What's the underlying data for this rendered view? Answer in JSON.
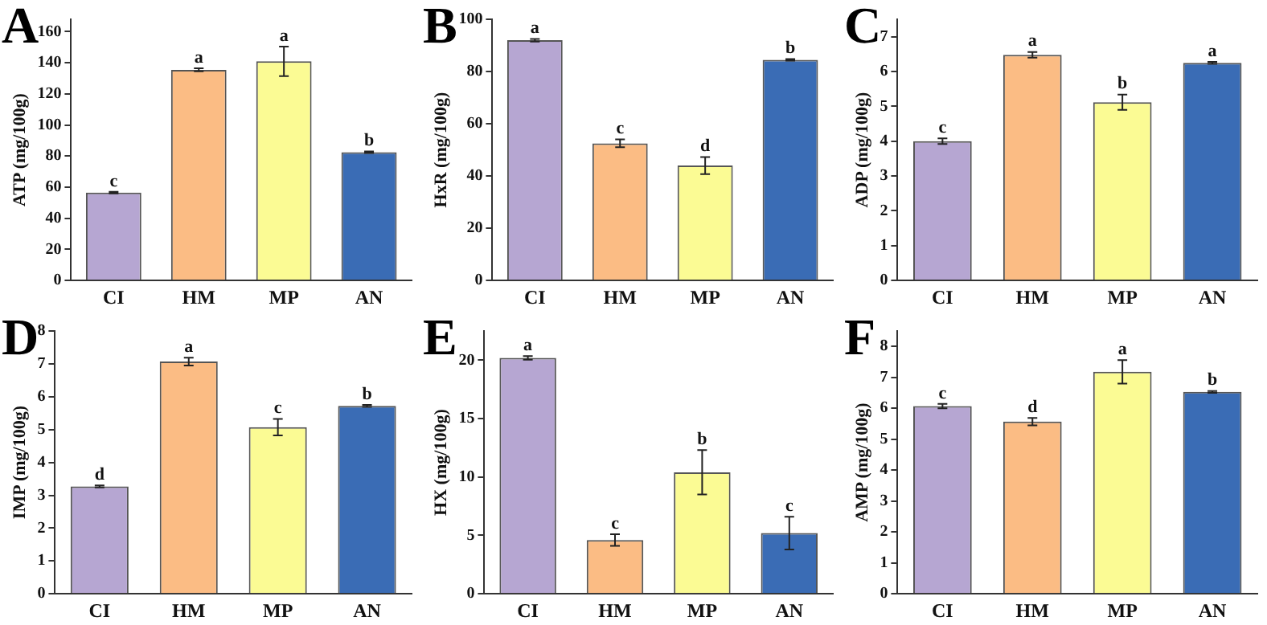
{
  "chart_data": [
    {
      "type": "bar",
      "title": "A",
      "ylabel": "ATP (mg/100g)",
      "categories": [
        "CI",
        "HM",
        "MP",
        "AN"
      ],
      "values": [
        56.5,
        135.5,
        141,
        82.5
      ],
      "errors": [
        0.5,
        1,
        9.5,
        0.5
      ],
      "colors": [
        "#b6a6d2",
        "#fbbc84",
        "#fbfb94",
        "#3a6cb5"
      ],
      "ylim": [
        0,
        168
      ],
      "yticks": [
        0,
        20,
        40,
        60,
        80,
        100,
        120,
        140,
        160
      ],
      "grid": false,
      "annotations": [
        {
          "text": "c",
          "x": "CI",
          "y": 57
        },
        {
          "text": "a",
          "x": "HM",
          "y": 136.5
        },
        {
          "text": "a",
          "x": "MP",
          "y": 150.5
        },
        {
          "text": "b",
          "x": "AN",
          "y": 83
        }
      ]
    },
    {
      "type": "bar",
      "title": "B",
      "ylabel": "HxR (mg/100g)",
      "categories": [
        "CI",
        "HM",
        "MP",
        "AN"
      ],
      "values": [
        92,
        52.5,
        44,
        84.5
      ],
      "errors": [
        0.5,
        1.5,
        3.3,
        0.3
      ],
      "colors": [
        "#b6a6d2",
        "#fbbc84",
        "#fbfb94",
        "#3a6cb5"
      ],
      "ylim": [
        0,
        100
      ],
      "yticks": [
        0,
        20,
        40,
        60,
        80,
        100
      ],
      "grid": false,
      "annotations": [
        {
          "text": "a",
          "x": "CI",
          "y": 92.5
        },
        {
          "text": "c",
          "x": "HM",
          "y": 54
        },
        {
          "text": "d",
          "x": "MP",
          "y": 47.3
        },
        {
          "text": "b",
          "x": "AN",
          "y": 84.8
        }
      ]
    },
    {
      "type": "bar",
      "title": "C",
      "ylabel": "ADP (mg/100g)",
      "categories": [
        "CI",
        "HM",
        "MP",
        "AN"
      ],
      "values": [
        4.0,
        6.48,
        5.12,
        6.25
      ],
      "errors": [
        0.08,
        0.08,
        0.22,
        0.03
      ],
      "colors": [
        "#b6a6d2",
        "#fbbc84",
        "#fbfb94",
        "#3a6cb5"
      ],
      "ylim": [
        0,
        7.5
      ],
      "yticks": [
        0,
        1,
        2,
        3,
        4,
        5,
        6,
        7
      ],
      "grid": false,
      "annotations": [
        {
          "text": "c",
          "x": "CI",
          "y": 4.08
        },
        {
          "text": "a",
          "x": "HM",
          "y": 6.56
        },
        {
          "text": "b",
          "x": "MP",
          "y": 5.34
        },
        {
          "text": "a",
          "x": "AN",
          "y": 6.28
        }
      ]
    },
    {
      "type": "bar",
      "title": "D",
      "ylabel": "IMP (mg/100g)",
      "categories": [
        "CI",
        "HM",
        "MP",
        "AN"
      ],
      "values": [
        3.27,
        7.07,
        5.07,
        5.72
      ],
      "errors": [
        0.03,
        0.12,
        0.25,
        0.03
      ],
      "colors": [
        "#b6a6d2",
        "#fbbc84",
        "#fbfb94",
        "#3a6cb5"
      ],
      "ylim": [
        0,
        8
      ],
      "yticks": [
        0,
        1,
        2,
        3,
        4,
        5,
        6,
        7,
        8
      ],
      "grid": false,
      "annotations": [
        {
          "text": "d",
          "x": "CI",
          "y": 3.3
        },
        {
          "text": "a",
          "x": "HM",
          "y": 7.19
        },
        {
          "text": "c",
          "x": "MP",
          "y": 5.32
        },
        {
          "text": "b",
          "x": "AN",
          "y": 5.75
        }
      ]
    },
    {
      "type": "bar",
      "title": "E",
      "ylabel": "HX (mg/100g)",
      "categories": [
        "CI",
        "HM",
        "MP",
        "AN"
      ],
      "values": [
        20.2,
        4.6,
        10.4,
        5.2
      ],
      "errors": [
        0.15,
        0.5,
        1.9,
        1.4
      ],
      "colors": [
        "#b6a6d2",
        "#fbbc84",
        "#fbfb94",
        "#3a6cb5"
      ],
      "ylim": [
        0,
        22.5
      ],
      "yticks": [
        0,
        5,
        10,
        15,
        20
      ],
      "grid": false,
      "annotations": [
        {
          "text": "a",
          "x": "CI",
          "y": 20.35
        },
        {
          "text": "c",
          "x": "HM",
          "y": 5.1
        },
        {
          "text": "b",
          "x": "MP",
          "y": 12.3
        },
        {
          "text": "c",
          "x": "AN",
          "y": 6.6
        }
      ]
    },
    {
      "type": "bar",
      "title": "F",
      "ylabel": "AMP (mg/100g)",
      "categories": [
        "CI",
        "HM",
        "MP",
        "AN"
      ],
      "values": [
        6.07,
        5.57,
        7.18,
        6.53
      ],
      "errors": [
        0.07,
        0.12,
        0.38,
        0.03
      ],
      "colors": [
        "#b6a6d2",
        "#fbbc84",
        "#fbfb94",
        "#3a6cb5"
      ],
      "ylim": [
        0,
        8.5
      ],
      "yticks": [
        0,
        1,
        2,
        3,
        4,
        5,
        6,
        7,
        8
      ],
      "grid": false,
      "annotations": [
        {
          "text": "c",
          "x": "CI",
          "y": 6.14
        },
        {
          "text": "d",
          "x": "HM",
          "y": 5.69
        },
        {
          "text": "a",
          "x": "MP",
          "y": 7.56
        },
        {
          "text": "b",
          "x": "AN",
          "y": 6.56
        }
      ]
    }
  ]
}
